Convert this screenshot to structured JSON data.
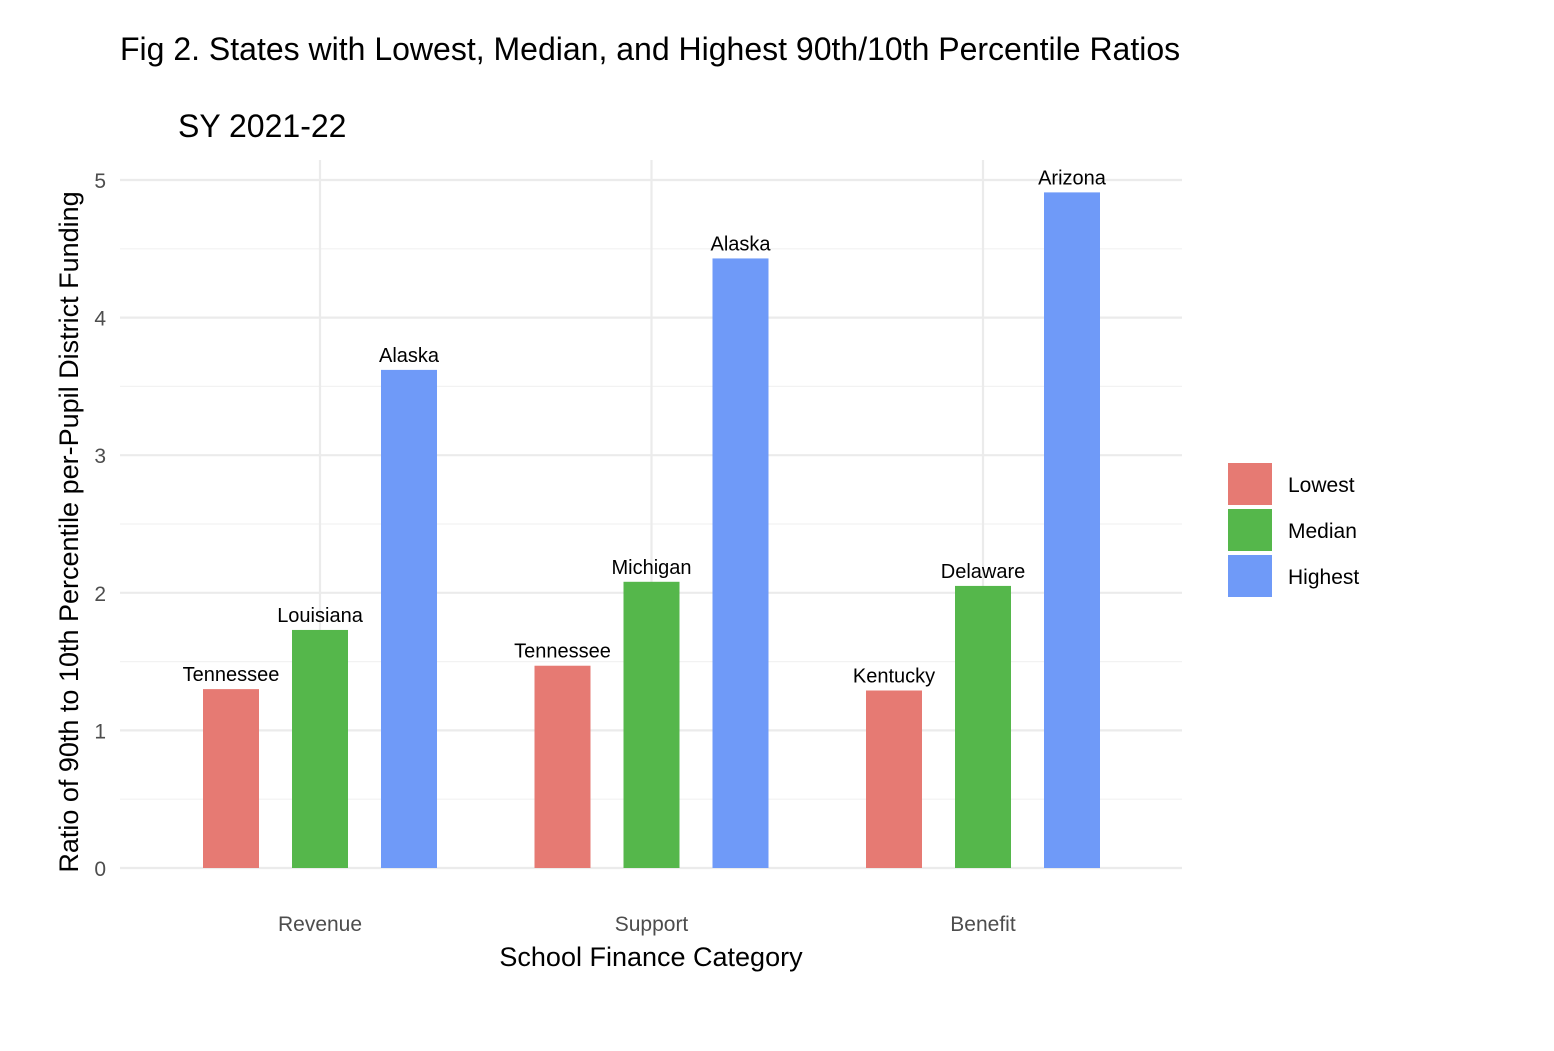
{
  "title": "Fig 2. States with Lowest, Median, and Highest 90th/10th Percentile Ratios",
  "subtitle": "SY 2021-22",
  "chart_data": {
    "type": "bar",
    "title": "Fig 2. States with Lowest, Median, and Highest 90th/10th Percentile Ratios",
    "subtitle": "SY 2021-22",
    "xlabel": "School Finance Category",
    "ylabel": "Ratio of 90th to 10th Percentile per-Pupil District Funding",
    "categories": [
      "Revenue",
      "Support",
      "Benefit"
    ],
    "ylim": [
      0,
      5
    ],
    "yticks": [
      0,
      1,
      2,
      3,
      4,
      5
    ],
    "grid": true,
    "legend_position": "right",
    "series": [
      {
        "name": "Lowest",
        "color": "#E67A73",
        "values": [
          1.3,
          1.47,
          1.29
        ],
        "labels": [
          "Tennessee",
          "Tennessee",
          "Kentucky"
        ]
      },
      {
        "name": "Median",
        "color": "#55B74B",
        "values": [
          1.73,
          2.08,
          2.05
        ],
        "labels": [
          "Louisiana",
          "Michigan",
          "Delaware"
        ]
      },
      {
        "name": "Highest",
        "color": "#6F9AF8",
        "values": [
          3.62,
          4.43,
          4.91
        ],
        "labels": [
          "Alaska",
          "Alaska",
          "Arizona"
        ]
      }
    ]
  }
}
